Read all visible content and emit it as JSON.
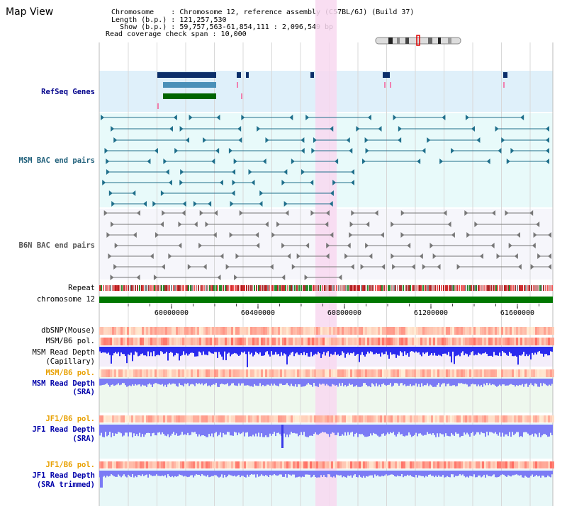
{
  "title": "Map View",
  "info": {
    "line1": "Chromosome    : Chromosome 12, reference assembly (C57BL/6J) (Build 37)",
    "line2": "Length (b.p.) : 121,257,530",
    "line3": "  Show (b.p.) : 59,757,563-61,854,111 : 2,096,549 bp",
    "line4": "Read coverage check span : 10,000"
  },
  "tracks": {
    "refseq": "RefSeq Genes",
    "msm_bac": "MSM BAC end pairs",
    "b6n_bac": "B6N BAC end pairs",
    "repeat": "Repeat",
    "chromosome": "chromosome 12",
    "dbsnp": "dbSNP(Mouse)",
    "msm_b6_pol_1": "MSM/B6 pol.",
    "msm_depth_cap_1": "MSM Read Depth",
    "msm_depth_cap_2": "(Capillary)",
    "msm_b6_pol_2": "MSM/B6 pol.",
    "msm_depth_sra_1": "MSM Read Depth",
    "msm_depth_sra_2": "(SRA)",
    "jf1_pol_1": "JF1/B6 pol.",
    "jf1_depth_1": "JF1 Read Depth",
    "jf1_depth_2": "(SRA)",
    "jf1_pol_2": "JF1/B6 pol.",
    "jf1_trim_1": "JF1 Read Depth",
    "jf1_trim_2": "(SRA trimmed)"
  },
  "axis": {
    "ticks": [
      "60000000",
      "60400000",
      "60800000",
      "61200000",
      "61600000"
    ]
  },
  "colors": {
    "highlight": "#f8d8f0",
    "refseq_bg": "#dff0fa",
    "msm_bac_bg": "#e8fafa",
    "chromosome": "#007700",
    "depth_bar": "#2a2aee",
    "depth_bar_light": "#7b7bf5",
    "pol": "#f08080"
  }
}
